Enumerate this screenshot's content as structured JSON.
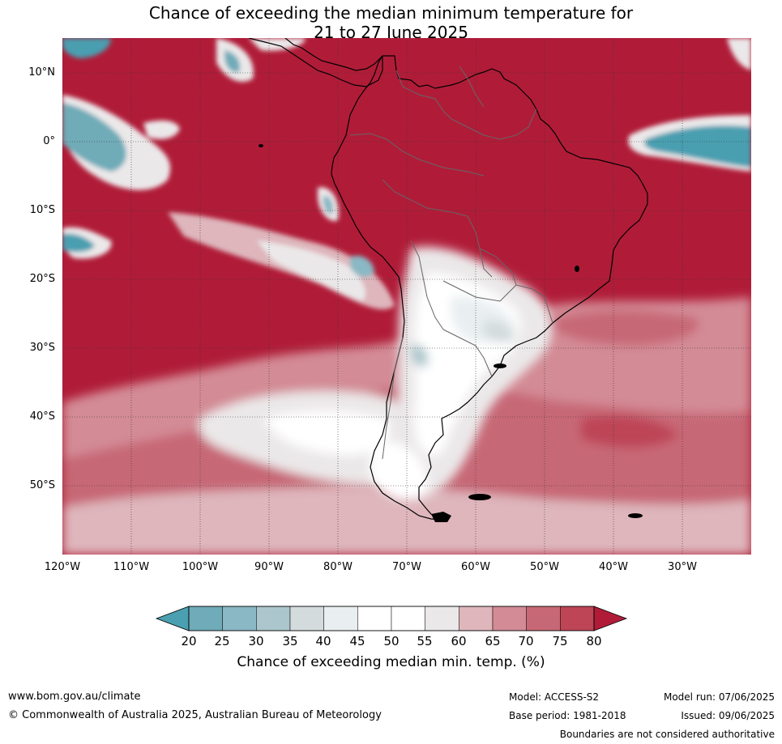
{
  "title_line1": "Chance of exceeding the median minimum temperature for",
  "title_line2": "21 to 27 June 2025",
  "lat_labels": [
    "10°N",
    "0°",
    "10°S",
    "20°S",
    "30°S",
    "40°S",
    "50°S"
  ],
  "lon_labels": [
    "120°W",
    "110°W",
    "100°W",
    "90°W",
    "80°W",
    "70°W",
    "60°W",
    "50°W",
    "40°W",
    "30°W"
  ],
  "colorbar": {
    "title": "Chance of exceeding median min. temp. (%)",
    "ticks": [
      "20",
      "25",
      "30",
      "35",
      "40",
      "45",
      "50",
      "55",
      "60",
      "65",
      "70",
      "75",
      "80"
    ],
    "colors": [
      "#4a9fb0",
      "#6fabb8",
      "#8ab8c4",
      "#abc6cc",
      "#d3dbdc",
      "#e9eff1",
      "#ffffff",
      "#ffffff",
      "#ebe8e9",
      "#deb6bc",
      "#d38b95",
      "#c76876",
      "#bd4556",
      "#b01c38"
    ]
  },
  "colors": {
    "high": "#b01c38",
    "low": "#4a9fb0",
    "neutral": "#ffffff"
  },
  "footer": {
    "website": "www.bom.gov.au/climate",
    "copyright": "© Commonwealth of Australia 2025, Australian Bureau of Meteorology",
    "model": "Model: ACCESS-S2",
    "base_period": "Base period: 1981-2018",
    "model_run": "Model run: 07/06/2025",
    "issued": "Issued: 09/06/2025",
    "disclaimer": "Boundaries are not considered authoritative"
  }
}
